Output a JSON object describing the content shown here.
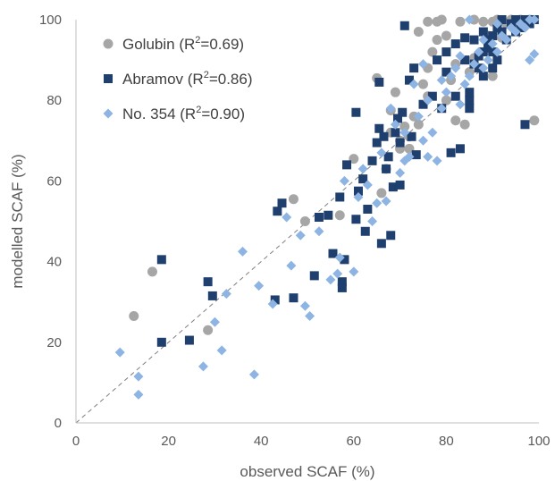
{
  "chart_data": {
    "type": "scatter",
    "title": "",
    "xlabel": "observed SCAF (%)",
    "ylabel": "modelled SCAF (%)",
    "xlim": [
      0,
      100
    ],
    "ylim": [
      0,
      100
    ],
    "x_ticks": [
      "0",
      "20",
      "40",
      "60",
      "80",
      "100"
    ],
    "y_ticks": [
      "0",
      "20",
      "40",
      "60",
      "80",
      "100"
    ],
    "grid": false,
    "reference_line": "1:1",
    "legend_position": "top-left",
    "series": [
      {
        "name": "Golubin",
        "r2_prefix": "Golubin (R",
        "r2_suffix": "=0.69)",
        "r2_exp": "2",
        "marker": "circle",
        "color": "#a6a6a6",
        "points": [
          [
            12.5,
            26.5
          ],
          [
            16.5,
            37.5
          ],
          [
            28.5,
            23
          ],
          [
            47,
            55.5
          ],
          [
            49.5,
            50
          ],
          [
            57,
            51.5
          ],
          [
            60,
            65.5
          ],
          [
            65,
            85.5
          ],
          [
            66,
            57
          ],
          [
            67,
            63
          ],
          [
            68,
            77.5
          ],
          [
            69,
            82
          ],
          [
            70,
            70
          ],
          [
            71,
            73.5
          ],
          [
            72,
            68
          ],
          [
            73,
            76
          ],
          [
            74,
            74
          ],
          [
            75,
            84
          ],
          [
            76,
            99.5
          ],
          [
            76,
            88
          ],
          [
            77,
            92
          ],
          [
            78,
            95
          ],
          [
            78,
            99.5
          ],
          [
            79,
            100
          ],
          [
            80,
            80
          ],
          [
            81,
            85
          ],
          [
            82,
            75
          ],
          [
            83,
            99.5
          ],
          [
            84,
            74
          ],
          [
            85,
            87
          ],
          [
            86,
            90.5
          ],
          [
            88,
            99.5
          ],
          [
            89,
            96
          ],
          [
            90,
            86
          ],
          [
            91,
            100
          ],
          [
            92,
            95.5
          ],
          [
            93,
            99
          ],
          [
            94,
            100
          ],
          [
            95,
            98.5
          ],
          [
            96,
            100
          ],
          [
            97,
            99.5
          ],
          [
            98,
            100
          ],
          [
            99,
            75
          ],
          [
            76,
            81
          ],
          [
            74,
            97
          ],
          [
            86,
            100
          ],
          [
            80,
            96
          ],
          [
            72,
            71
          ],
          [
            70,
            68
          ],
          [
            68,
            72
          ],
          [
            82,
            89
          ],
          [
            90,
            99.5
          ]
        ]
      },
      {
        "name": "Abramov",
        "r2_prefix": "Abramov (R",
        "r2_suffix": "=0.86)",
        "r2_exp": "2",
        "marker": "square",
        "color": "#1f3f6e",
        "points": [
          [
            18.5,
            40.5
          ],
          [
            18.5,
            20
          ],
          [
            24.5,
            20.5
          ],
          [
            28.5,
            35
          ],
          [
            29.5,
            31.5
          ],
          [
            43,
            30.5
          ],
          [
            43.5,
            52.5
          ],
          [
            44.5,
            54.5
          ],
          [
            47,
            31
          ],
          [
            51.5,
            36.5
          ],
          [
            52.5,
            51
          ],
          [
            54.5,
            51.5
          ],
          [
            55.5,
            42
          ],
          [
            57,
            56
          ],
          [
            57.5,
            35
          ],
          [
            57.5,
            33.5
          ],
          [
            58,
            40.5
          ],
          [
            58.5,
            64
          ],
          [
            60.5,
            77
          ],
          [
            60.5,
            50.5
          ],
          [
            61,
            57.5
          ],
          [
            62,
            60.5
          ],
          [
            62.5,
            47.5
          ],
          [
            63,
            53
          ],
          [
            64,
            65
          ],
          [
            65,
            69.5
          ],
          [
            65.5,
            73
          ],
          [
            65.5,
            84.5
          ],
          [
            66,
            44.5
          ],
          [
            66.5,
            71
          ],
          [
            67,
            63
          ],
          [
            67.5,
            66
          ],
          [
            68,
            46.5
          ],
          [
            68.5,
            58.5
          ],
          [
            69,
            72
          ],
          [
            69.5,
            75.5
          ],
          [
            70,
            69.5
          ],
          [
            70,
            59
          ],
          [
            70.5,
            77
          ],
          [
            71,
            98.5
          ],
          [
            72,
            85
          ],
          [
            72.5,
            71
          ],
          [
            73,
            88
          ],
          [
            73.5,
            66.5
          ],
          [
            75,
            79
          ],
          [
            77,
            81
          ],
          [
            78,
            90
          ],
          [
            79,
            78
          ],
          [
            80,
            87
          ],
          [
            81,
            67
          ],
          [
            82,
            94
          ],
          [
            83,
            68
          ],
          [
            84,
            95.5
          ],
          [
            85,
            78
          ],
          [
            85,
            80
          ],
          [
            85,
            82
          ],
          [
            86,
            89
          ],
          [
            87,
            91
          ],
          [
            87,
            88
          ],
          [
            88,
            86
          ],
          [
            88,
            92
          ],
          [
            89,
            93
          ],
          [
            89,
            95
          ],
          [
            90,
            88
          ],
          [
            90,
            96
          ],
          [
            91,
            90
          ],
          [
            91,
            98
          ],
          [
            92,
            97
          ],
          [
            93,
            95
          ],
          [
            94,
            99
          ],
          [
            95,
            100
          ],
          [
            95,
            97
          ],
          [
            96,
            98
          ],
          [
            97,
            74
          ],
          [
            97,
            100
          ],
          [
            98,
            99
          ],
          [
            99,
            100
          ],
          [
            86,
            95
          ],
          [
            88,
            97
          ],
          [
            92,
            100
          ],
          [
            90,
            92
          ],
          [
            84,
            90
          ],
          [
            82,
            81
          ],
          [
            80,
            92
          ]
        ]
      },
      {
        "name": "No. 354",
        "r2_prefix": "No. 354 (R",
        "r2_suffix": "=0.90)",
        "r2_exp": "2",
        "marker": "diamond",
        "color": "#8db4e2",
        "points": [
          [
            9.5,
            17.5
          ],
          [
            13.5,
            11.5
          ],
          [
            13.5,
            7
          ],
          [
            27.5,
            14
          ],
          [
            30,
            25
          ],
          [
            31.5,
            18
          ],
          [
            32.5,
            32
          ],
          [
            36,
            42.5
          ],
          [
            38.5,
            12
          ],
          [
            39.5,
            34
          ],
          [
            42.5,
            29.5
          ],
          [
            45.5,
            51
          ],
          [
            46.5,
            39
          ],
          [
            48.5,
            46.5
          ],
          [
            49.5,
            29
          ],
          [
            50.5,
            26.5
          ],
          [
            52.5,
            47.5
          ],
          [
            55,
            35.5
          ],
          [
            56.5,
            37
          ],
          [
            57,
            41
          ],
          [
            58,
            60
          ],
          [
            60,
            37.5
          ],
          [
            61,
            56
          ],
          [
            62,
            63
          ],
          [
            63,
            59
          ],
          [
            64,
            50
          ],
          [
            65,
            54.5
          ],
          [
            66,
            67
          ],
          [
            67,
            55
          ],
          [
            68,
            78
          ],
          [
            69,
            74
          ],
          [
            70,
            62
          ],
          [
            71,
            72
          ],
          [
            72,
            66
          ],
          [
            73,
            84
          ],
          [
            74,
            76
          ],
          [
            75,
            70
          ],
          [
            76,
            80
          ],
          [
            77,
            72
          ],
          [
            78,
            65
          ],
          [
            79,
            78
          ],
          [
            80,
            82
          ],
          [
            81,
            86
          ],
          [
            82,
            88
          ],
          [
            83,
            79
          ],
          [
            84,
            84
          ],
          [
            85,
            86
          ],
          [
            86,
            89
          ],
          [
            87,
            92
          ],
          [
            88,
            88
          ],
          [
            89,
            90
          ],
          [
            90,
            94
          ],
          [
            91,
            92
          ],
          [
            92,
            96
          ],
          [
            93,
            95
          ],
          [
            94,
            98
          ],
          [
            95,
            97
          ],
          [
            96,
            99
          ],
          [
            97,
            98
          ],
          [
            98,
            90
          ],
          [
            98,
            100
          ],
          [
            99,
            91.5
          ],
          [
            99,
            100
          ],
          [
            71,
            65
          ],
          [
            76,
            66
          ],
          [
            79,
            85
          ],
          [
            83,
            91
          ],
          [
            88,
            95
          ],
          [
            91,
            99
          ],
          [
            85,
            100
          ],
          [
            75,
            89
          ]
        ]
      }
    ]
  }
}
